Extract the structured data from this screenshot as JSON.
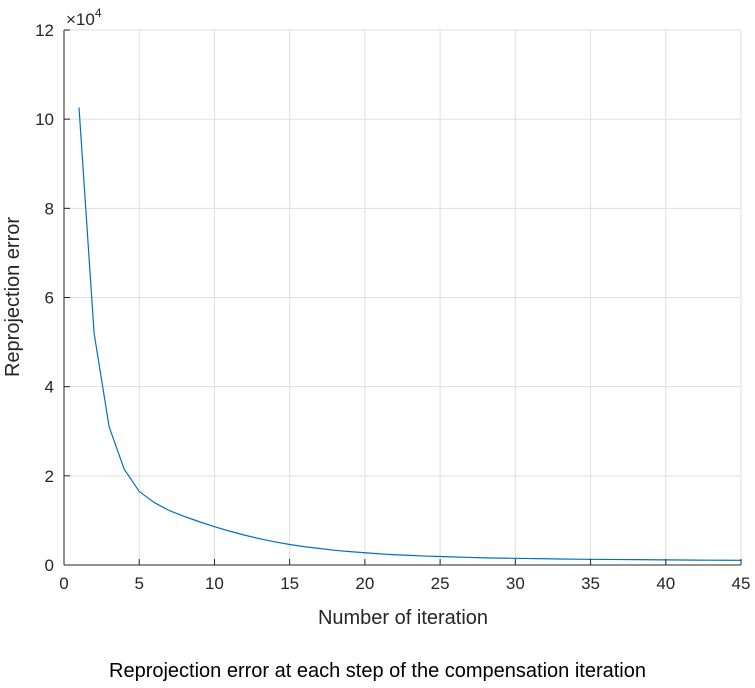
{
  "caption": "Reprojection error at each step of the compensation iteration",
  "chart_data": {
    "type": "line",
    "title": "",
    "xlabel": "Number of iteration",
    "ylabel": "Reprojection error",
    "xlim": [
      0,
      45
    ],
    "ylim": [
      0,
      120000
    ],
    "y_multiplier_base": "×10",
    "y_multiplier_exponent": "4",
    "x_ticks": [
      0,
      5,
      10,
      15,
      20,
      25,
      30,
      35,
      40,
      45
    ],
    "x_tick_labels": [
      "0",
      "5",
      "10",
      "15",
      "20",
      "25",
      "30",
      "35",
      "40",
      "45"
    ],
    "y_ticks": [
      0,
      20000,
      40000,
      60000,
      80000,
      100000,
      120000
    ],
    "y_tick_labels": [
      "0",
      "2",
      "4",
      "6",
      "8",
      "10",
      "12"
    ],
    "grid": true,
    "line_color": "#0072BD",
    "series": [
      {
        "x": [
          1,
          2,
          3,
          4,
          5,
          6,
          7,
          8,
          9,
          10,
          11,
          12,
          13,
          14,
          15,
          16,
          17,
          18,
          19,
          20,
          21,
          22,
          23,
          24,
          25,
          26,
          27,
          28,
          29,
          30,
          31,
          32,
          33,
          34,
          35,
          36,
          37,
          38,
          39,
          40,
          41,
          42,
          43,
          44,
          45
        ],
        "y": [
          102500,
          52000,
          31000,
          21500,
          16500,
          14000,
          12200,
          10900,
          9700,
          8600,
          7600,
          6700,
          5900,
          5200,
          4600,
          4100,
          3700,
          3300,
          3000,
          2750,
          2500,
          2300,
          2150,
          2000,
          1900,
          1800,
          1700,
          1600,
          1550,
          1500,
          1450,
          1400,
          1350,
          1300,
          1280,
          1250,
          1220,
          1200,
          1170,
          1150,
          1120,
          1100,
          1080,
          1060,
          1050
        ]
      }
    ]
  }
}
